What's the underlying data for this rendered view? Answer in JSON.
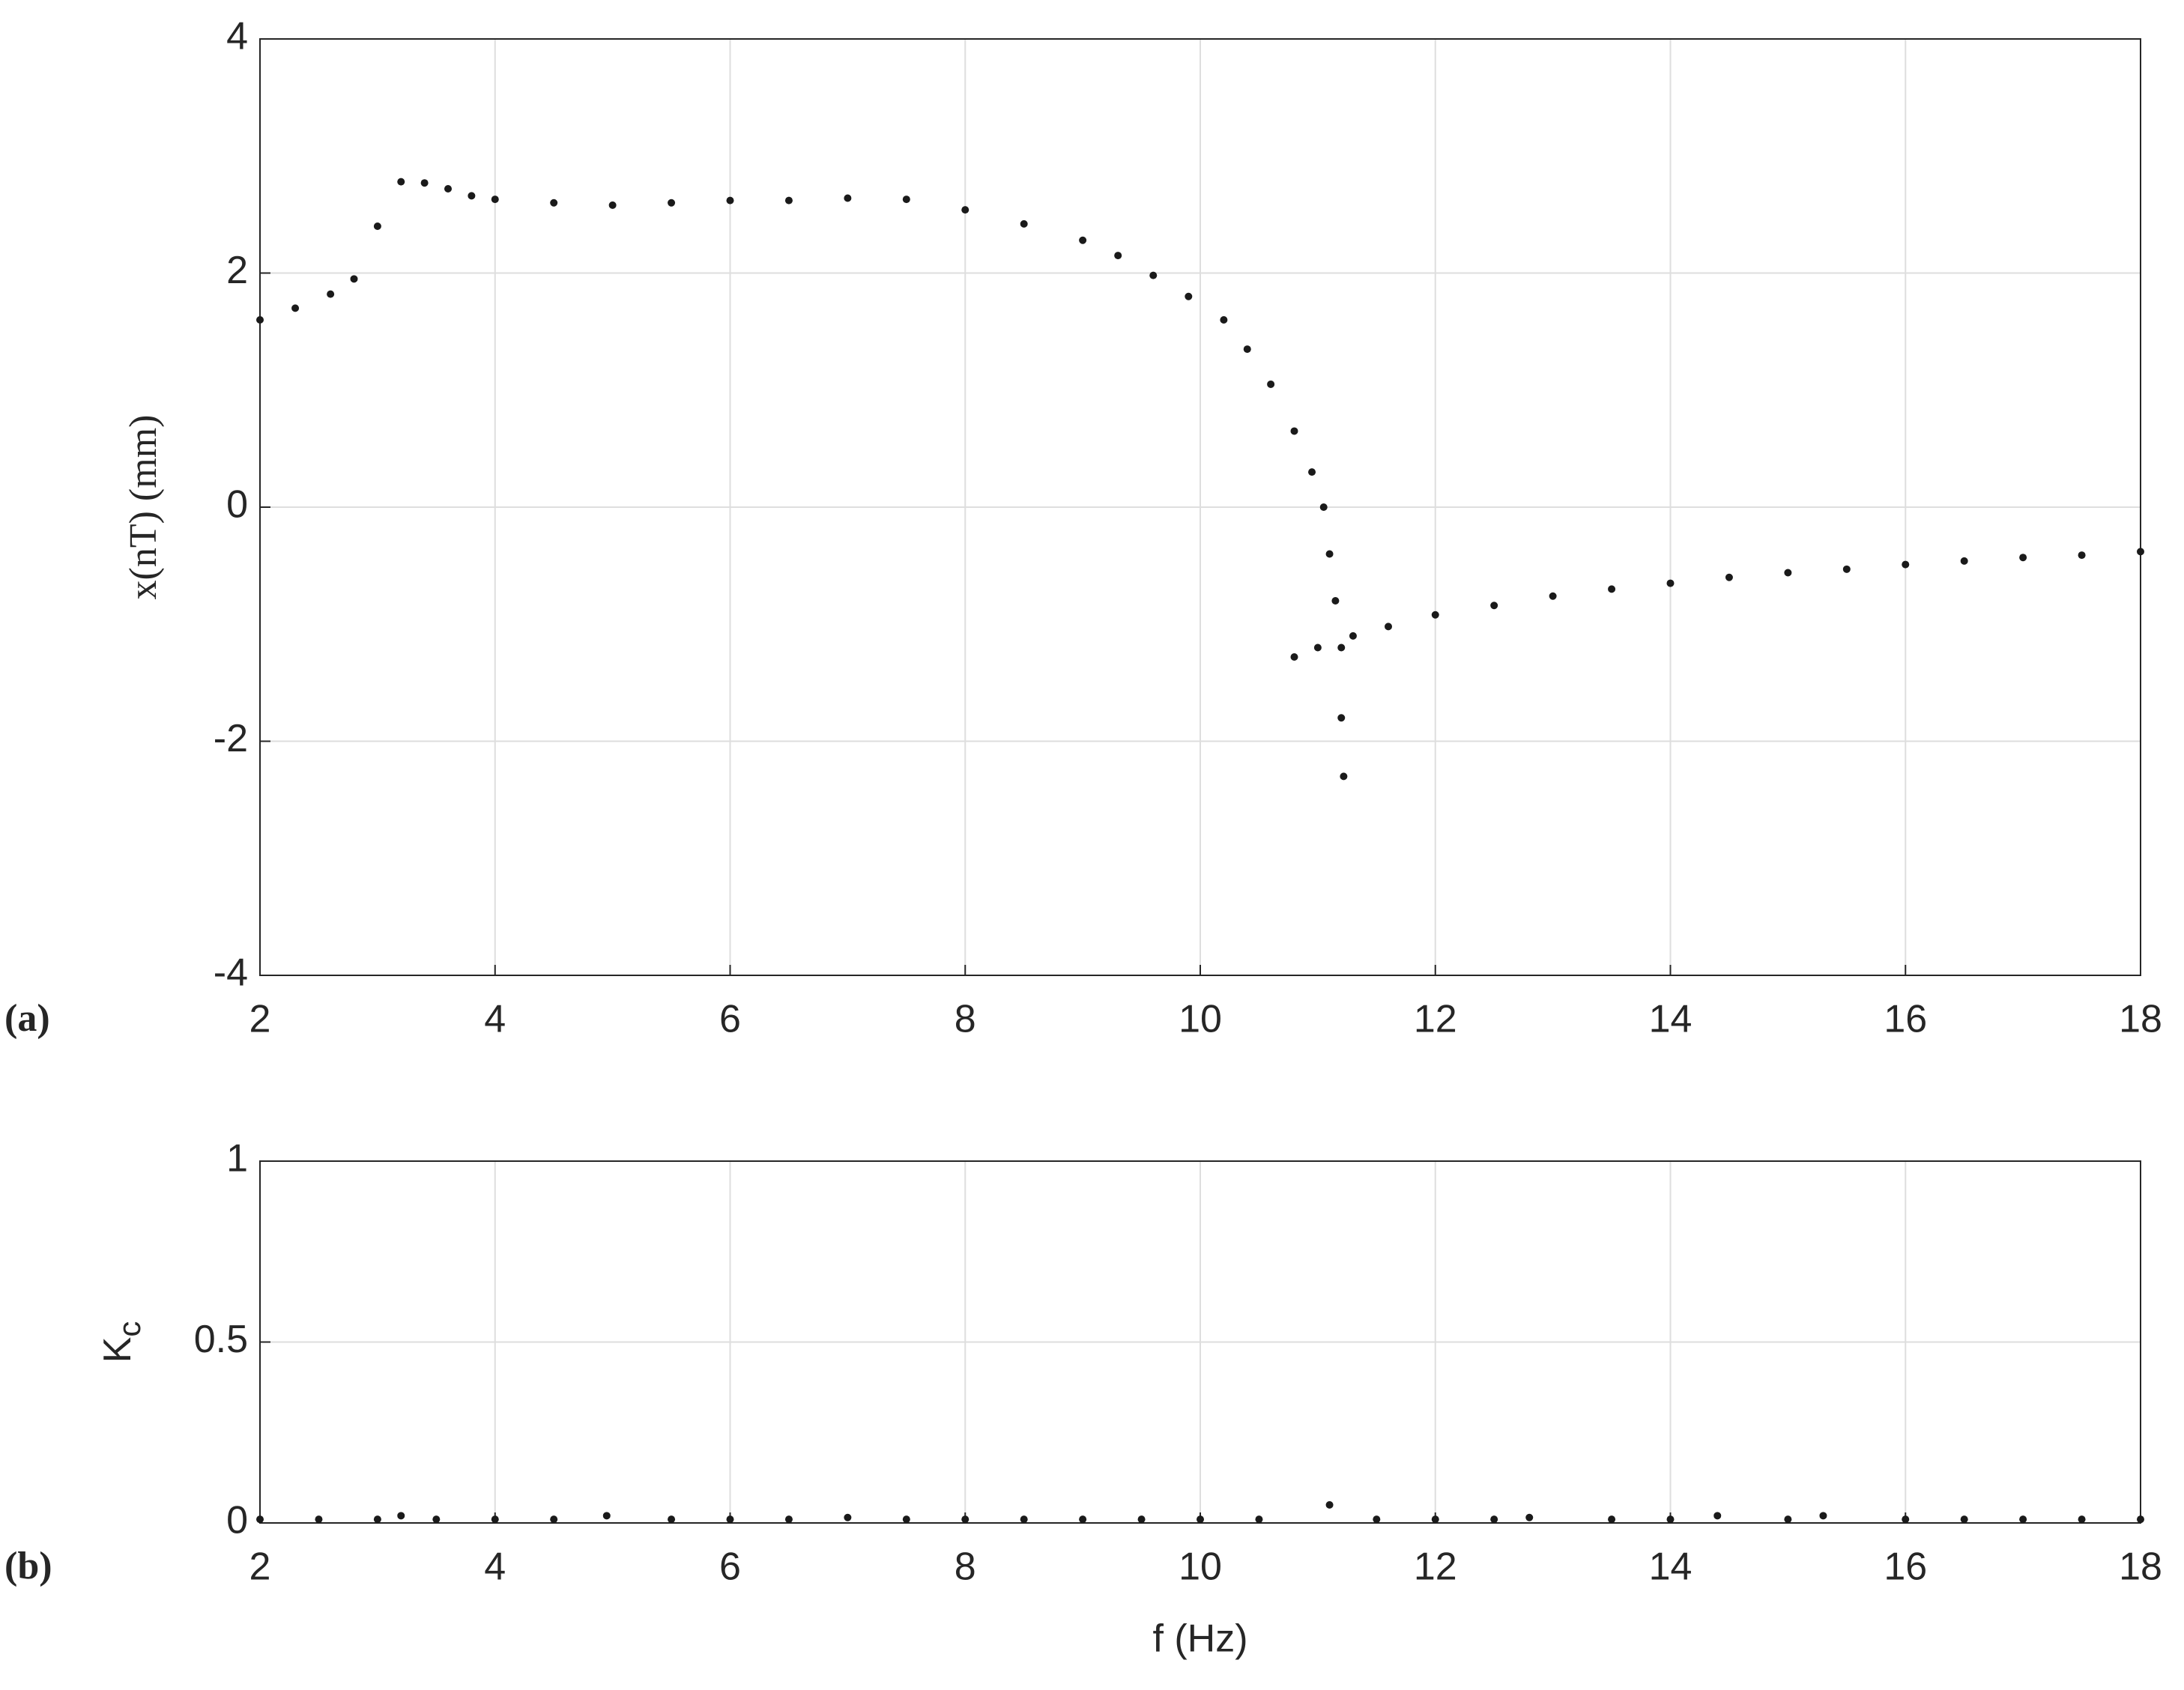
{
  "chart_data": [
    {
      "type": "scatter",
      "panel_label": "(a)",
      "ylabel": "x(nT) (mm)",
      "x": [
        2.0,
        2.3,
        2.6,
        2.8,
        3.0,
        3.2,
        3.4,
        3.6,
        3.8,
        4.0,
        4.5,
        5.0,
        5.5,
        6.0,
        6.5,
        7.0,
        7.5,
        8.0,
        8.5,
        9.0,
        9.3,
        9.6,
        9.9,
        10.2,
        10.4,
        10.6,
        10.8,
        10.95,
        11.05,
        11.1,
        11.15,
        11.2,
        11.2,
        11.22,
        10.8,
        11.0,
        11.3,
        11.6,
        12.0,
        12.5,
        13.0,
        13.5,
        14.0,
        14.5,
        15.0,
        15.5,
        16.0,
        16.5,
        17.0,
        17.5,
        18.0
      ],
      "values": [
        1.6,
        1.7,
        1.82,
        1.95,
        2.4,
        2.78,
        2.77,
        2.72,
        2.66,
        2.63,
        2.6,
        2.58,
        2.6,
        2.62,
        2.62,
        2.64,
        2.63,
        2.54,
        2.42,
        2.28,
        2.15,
        1.98,
        1.8,
        1.6,
        1.35,
        1.05,
        0.65,
        0.3,
        0.0,
        -0.4,
        -0.8,
        -1.2,
        -1.8,
        -2.3,
        -1.28,
        -1.2,
        -1.1,
        -1.02,
        -0.92,
        -0.84,
        -0.76,
        -0.7,
        -0.65,
        -0.6,
        -0.56,
        -0.53,
        -0.49,
        -0.46,
        -0.43,
        -0.41,
        -0.38
      ],
      "color": "#1a1a1a",
      "xlim": [
        2,
        18
      ],
      "xticks": [
        2,
        4,
        6,
        8,
        10,
        12,
        14,
        16,
        18
      ],
      "ylim": [
        -4,
        4
      ],
      "yticks": [
        -4,
        -2,
        0,
        2,
        4
      ],
      "grid": true
    },
    {
      "type": "scatter",
      "panel_label": "(b)",
      "ylabel": "K",
      "ylabel_subscript": "c",
      "xlabel": "f (Hz)",
      "x": [
        2.0,
        2.5,
        3.0,
        3.2,
        3.5,
        4.0,
        4.5,
        4.95,
        5.5,
        6.0,
        6.5,
        7.0,
        7.5,
        8.0,
        8.5,
        9.0,
        9.5,
        10.0,
        10.5,
        11.1,
        11.5,
        12.0,
        12.5,
        12.8,
        13.5,
        14.0,
        14.4,
        15.0,
        15.3,
        16.0,
        16.5,
        17.0,
        17.5,
        18.0
      ],
      "values": [
        0.01,
        0.01,
        0.01,
        0.02,
        0.01,
        0.01,
        0.01,
        0.02,
        0.01,
        0.01,
        0.01,
        0.015,
        0.01,
        0.01,
        0.01,
        0.01,
        0.01,
        0.01,
        0.01,
        0.05,
        0.01,
        0.01,
        0.01,
        0.015,
        0.01,
        0.01,
        0.02,
        0.01,
        0.02,
        0.01,
        0.01,
        0.01,
        0.01,
        0.01
      ],
      "color": "#1a1a1a",
      "xlim": [
        2,
        18
      ],
      "xticks": [
        2,
        4,
        6,
        8,
        10,
        12,
        14,
        16,
        18
      ],
      "ylim": [
        0,
        1
      ],
      "yticks": [
        0,
        0.5,
        1
      ],
      "grid": true
    }
  ]
}
